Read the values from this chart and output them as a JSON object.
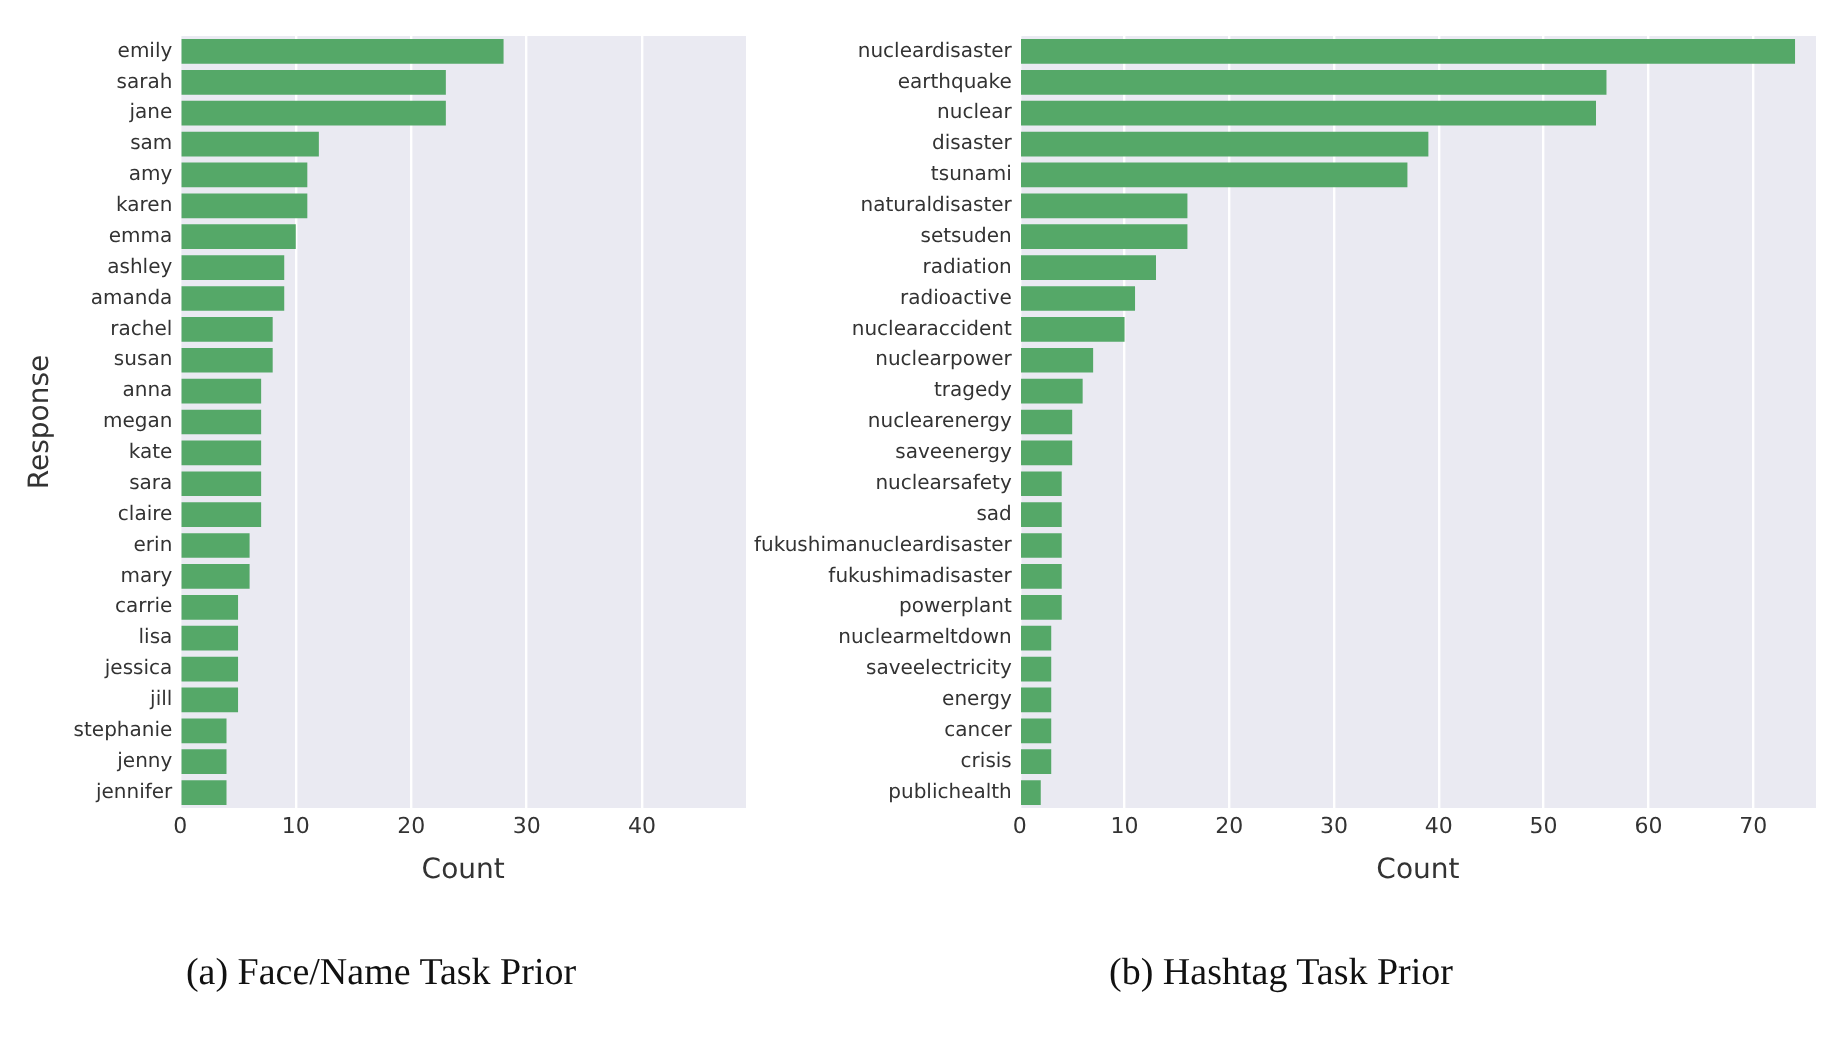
{
  "chart_data": [
    {
      "type": "bar",
      "orientation": "horizontal",
      "categories": [
        "emily",
        "sarah",
        "jane",
        "sam",
        "amy",
        "karen",
        "emma",
        "ashley",
        "amanda",
        "rachel",
        "susan",
        "anna",
        "megan",
        "kate",
        "sara",
        "claire",
        "erin",
        "mary",
        "carrie",
        "lisa",
        "jessica",
        "jill",
        "stephanie",
        "jenny",
        "jennifer"
      ],
      "values": [
        28,
        23,
        23,
        12,
        11,
        11,
        10,
        9,
        9,
        8,
        8,
        7,
        7,
        7,
        7,
        7,
        6,
        6,
        5,
        5,
        5,
        5,
        4,
        4,
        4
      ],
      "color": "#55a868",
      "xlim": [
        0,
        49
      ],
      "xticks": [
        0,
        10,
        20,
        30,
        40
      ],
      "xlabel": "Count",
      "ylabel": "Response",
      "grid": "x",
      "annotations": [
        "(a) Face/Name Task Prior"
      ]
    },
    {
      "type": "bar",
      "orientation": "horizontal",
      "categories": [
        "nucleardisaster",
        "earthquake",
        "nuclear",
        "disaster",
        "tsunami",
        "naturaldisaster",
        "setsuden",
        "radiation",
        "radioactive",
        "nuclearaccident",
        "nuclearpower",
        "tragedy",
        "nuclearenergy",
        "saveenergy",
        "nuclearsafety",
        "sad",
        "fukushimanucleardisaster",
        "fukushimadisaster",
        "powerplant",
        "nuclearmeltdown",
        "saveelectricity",
        "energy",
        "cancer",
        "crisis",
        "publichealth"
      ],
      "values": [
        74,
        56,
        55,
        39,
        37,
        16,
        16,
        13,
        11,
        10,
        7,
        6,
        5,
        5,
        4,
        4,
        4,
        4,
        4,
        3,
        3,
        3,
        3,
        3,
        2
      ],
      "color": "#55a868",
      "xlim": [
        0,
        76
      ],
      "xticks": [
        0,
        10,
        20,
        30,
        40,
        50,
        60,
        70
      ],
      "xlabel": "Count",
      "grid": "x",
      "annotations": [
        "(b) Hashtag Task Prior"
      ]
    }
  ]
}
